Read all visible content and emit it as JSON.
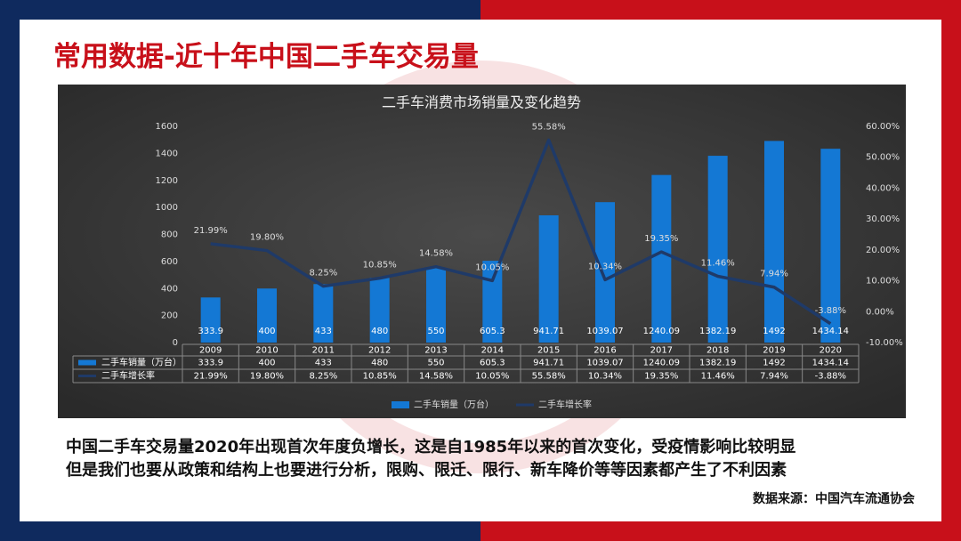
{
  "page_title": "常用数据-近十年中国二手车交易量",
  "chart_data": {
    "type": "combo",
    "title": "二手车消费市场销量及变化趋势",
    "categories": [
      "2009",
      "2010",
      "2011",
      "2012",
      "2013",
      "2014",
      "2015",
      "2016",
      "2017",
      "2018",
      "2019",
      "2020"
    ],
    "series": [
      {
        "name": "二手车销量（万台）",
        "type": "bar",
        "color": "#1478d4",
        "values": [
          333.9,
          400,
          433,
          480,
          550,
          605.3,
          941.71,
          1039.07,
          1240.09,
          1382.19,
          1492,
          1434.14
        ]
      },
      {
        "name": "二手车增长率",
        "type": "line",
        "axis": "y2",
        "color": "#1f3a68",
        "values": [
          21.99,
          19.8,
          8.25,
          10.85,
          14.58,
          10.05,
          55.58,
          10.34,
          19.35,
          11.46,
          7.94,
          -3.88
        ],
        "value_labels": [
          "21.99%",
          "19.80%",
          "8.25%",
          "10.85%",
          "14.58%",
          "10.05%",
          "55.58%",
          "10.34%",
          "19.35%",
          "11.46%",
          "7.94%",
          "-3.88%"
        ]
      }
    ],
    "ylim": [
      0,
      1600
    ],
    "yticks": [
      0,
      200,
      400,
      600,
      800,
      1000,
      1200,
      1400,
      1600
    ],
    "y2lim": [
      -10,
      60
    ],
    "y2ticks": [
      {
        "value": -10,
        "label": "-10.00%"
      },
      {
        "value": 0,
        "label": "0.00%"
      },
      {
        "value": 10,
        "label": "10.00%"
      },
      {
        "value": 20,
        "label": "20.00%"
      },
      {
        "value": 30,
        "label": "30.00%"
      },
      {
        "value": 40,
        "label": "40.00%"
      },
      {
        "value": 50,
        "label": "50.00%"
      },
      {
        "value": 60,
        "label": "60.00%"
      }
    ],
    "data_table": true,
    "legend": "bottom"
  },
  "body": [
    "中国二手车交易量2020年出现首次年度负增长，这是自1985年以来的首次变化，受疫情影响比较明显",
    "但是我们也要从政策和结构上也要进行分析，限购、限迁、限行、新车降价等等因素都产生了不利因素"
  ],
  "source": "数据来源：中国汽车流通协会"
}
